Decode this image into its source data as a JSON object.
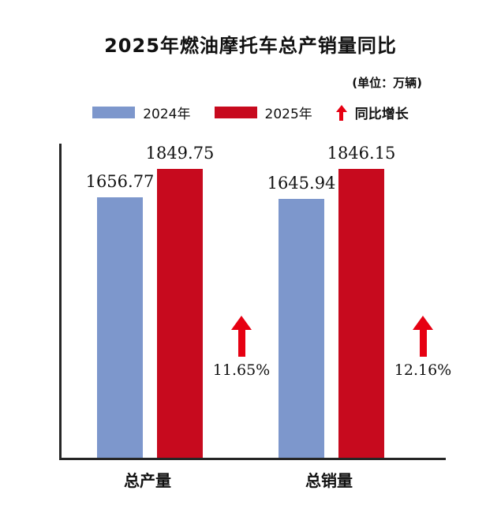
{
  "title": "2025年燃油摩托车总产销量同比",
  "unit_note": "(单位：万辆)",
  "legend": {
    "items": [
      {
        "label": "2024年",
        "color": "#7d97cc"
      },
      {
        "label": "2025年",
        "color": "#c70a1e"
      },
      {
        "label": "同比增长",
        "color": "#e60012"
      }
    ]
  },
  "chart_data": {
    "type": "bar",
    "title": "2025年燃油摩托车总产销量同比",
    "unit": "万辆",
    "categories": [
      "总产量",
      "总销量"
    ],
    "series": [
      {
        "name": "2024年",
        "color": "#7d97cc",
        "values": [
          1656.77,
          1645.94
        ]
      },
      {
        "name": "2025年",
        "color": "#c70a1e",
        "values": [
          1849.75,
          1846.15
        ]
      }
    ],
    "growth": [
      "11.65%",
      "12.16%"
    ],
    "ylim": [
      0,
      2000
    ],
    "grid": false,
    "legend_position": "top"
  }
}
